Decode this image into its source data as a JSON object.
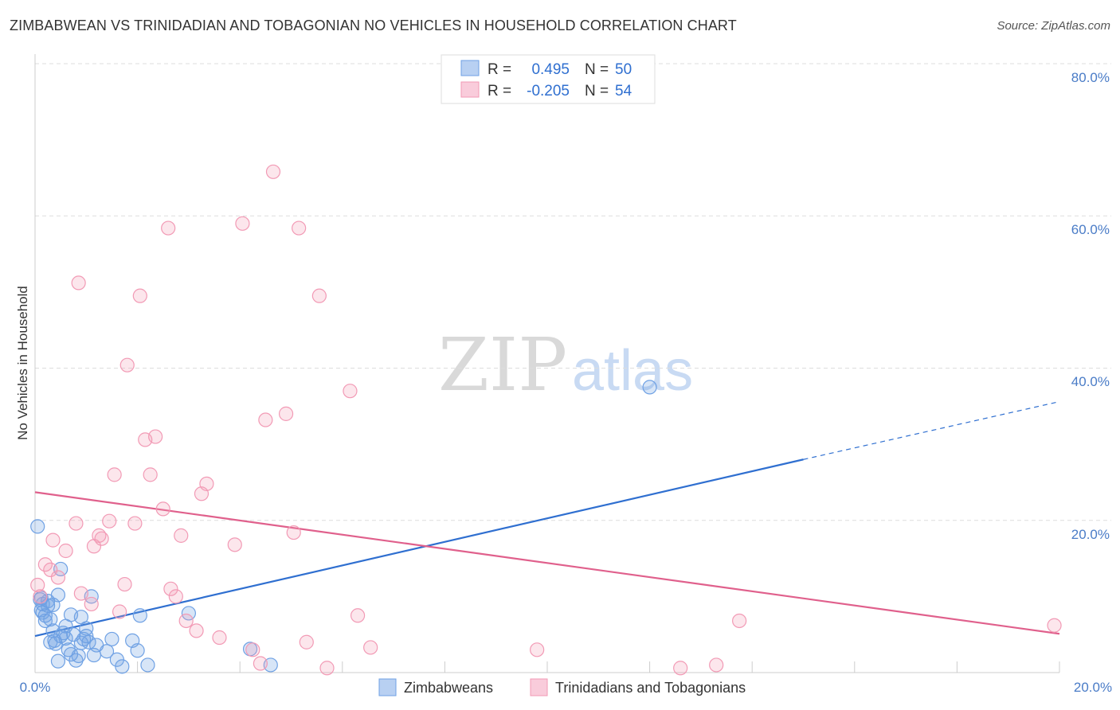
{
  "title": "ZIMBABWEAN VS TRINIDADIAN AND TOBAGONIAN NO VEHICLES IN HOUSEHOLD CORRELATION CHART",
  "source": "Source: ZipAtlas.com",
  "watermark": {
    "zip": "ZIP",
    "atlas": "atlas"
  },
  "colors": {
    "blue": "#6fa1e4",
    "blue_line": "#2f6fd0",
    "pink": "#f29ab5",
    "pink_line": "#e0608c",
    "grid": "#dddddd",
    "axis_text": "#4a7cc7"
  },
  "legend": {
    "rows": [
      {
        "r_label": "R =",
        "r_value": "0.495",
        "n_label": "N =",
        "n_value": "50"
      },
      {
        "r_label": "R =",
        "r_value": "-0.205",
        "n_label": "N =",
        "n_value": "54"
      }
    ]
  },
  "bottom_legend": [
    "Zimbabweans",
    "Trinidadians and Tobagonians"
  ],
  "chart_data": {
    "type": "scatter",
    "title": "ZIMBABWEAN VS TRINIDADIAN AND TOBAGONIAN NO VEHICLES IN HOUSEHOLD CORRELATION CHART",
    "xlabel": "",
    "ylabel": "No Vehicles in Household",
    "xlim": [
      0,
      20
    ],
    "ylim": [
      0,
      80
    ],
    "x_ticks": [
      "0.0%",
      "20.0%"
    ],
    "y_ticks": [
      "20.0%",
      "40.0%",
      "60.0%",
      "80.0%"
    ],
    "y_tick_values": [
      20,
      40,
      60,
      80
    ],
    "grid": true,
    "legend_position": "top-center",
    "series": [
      {
        "name": "Zimbabweans",
        "color": "#6fa1e4",
        "points": [
          [
            0.05,
            19.2
          ],
          [
            0.1,
            9.6
          ],
          [
            0.12,
            8.2
          ],
          [
            0.15,
            9.0
          ],
          [
            0.2,
            7.5
          ],
          [
            0.25,
            8.8
          ],
          [
            0.3,
            7.0
          ],
          [
            0.35,
            5.5
          ],
          [
            0.38,
            4.2
          ],
          [
            0.4,
            3.8
          ],
          [
            0.45,
            10.2
          ],
          [
            0.5,
            4.8
          ],
          [
            0.5,
            13.6
          ],
          [
            0.55,
            5.2
          ],
          [
            0.6,
            6.1
          ],
          [
            0.65,
            3.0
          ],
          [
            0.7,
            2.4
          ],
          [
            0.7,
            7.6
          ],
          [
            0.75,
            5.0
          ],
          [
            0.8,
            1.6
          ],
          [
            0.85,
            2.2
          ],
          [
            0.9,
            3.9
          ],
          [
            0.95,
            4.4
          ],
          [
            1.0,
            5.8
          ],
          [
            1.05,
            4.0
          ],
          [
            1.1,
            10.0
          ],
          [
            1.15,
            2.3
          ],
          [
            1.2,
            3.6
          ],
          [
            1.4,
            2.8
          ],
          [
            1.5,
            4.4
          ],
          [
            1.6,
            1.7
          ],
          [
            1.7,
            0.8
          ],
          [
            1.9,
            4.2
          ],
          [
            2.0,
            2.9
          ],
          [
            2.05,
            7.5
          ],
          [
            2.2,
            1.0
          ],
          [
            3.0,
            7.8
          ],
          [
            4.2,
            3.1
          ],
          [
            4.6,
            1.0
          ],
          [
            0.15,
            7.9
          ],
          [
            0.25,
            9.4
          ],
          [
            0.6,
            4.5
          ],
          [
            0.3,
            4.0
          ],
          [
            0.2,
            6.8
          ],
          [
            0.9,
            7.3
          ],
          [
            12.0,
            37.5
          ],
          [
            0.35,
            8.9
          ],
          [
            0.12,
            9.8
          ],
          [
            1.0,
            4.8
          ],
          [
            0.45,
            1.5
          ]
        ]
      },
      {
        "name": "Trinidadians and Tobagonians",
        "color": "#f29ab5",
        "points": [
          [
            0.05,
            11.5
          ],
          [
            0.1,
            10.0
          ],
          [
            0.2,
            14.2
          ],
          [
            0.3,
            13.5
          ],
          [
            0.35,
            17.4
          ],
          [
            0.45,
            12.5
          ],
          [
            0.6,
            16.0
          ],
          [
            0.8,
            19.6
          ],
          [
            0.85,
            51.2
          ],
          [
            0.9,
            10.4
          ],
          [
            1.1,
            9.0
          ],
          [
            1.15,
            16.6
          ],
          [
            1.25,
            18.0
          ],
          [
            1.3,
            17.6
          ],
          [
            1.45,
            19.9
          ],
          [
            1.55,
            26.0
          ],
          [
            1.65,
            8.0
          ],
          [
            1.75,
            11.6
          ],
          [
            1.8,
            40.4
          ],
          [
            1.95,
            19.6
          ],
          [
            2.05,
            49.5
          ],
          [
            2.15,
            30.6
          ],
          [
            2.25,
            26.0
          ],
          [
            2.35,
            31.0
          ],
          [
            2.5,
            21.5
          ],
          [
            2.6,
            58.4
          ],
          [
            2.65,
            11.0
          ],
          [
            2.75,
            10.0
          ],
          [
            2.85,
            18.0
          ],
          [
            2.95,
            6.8
          ],
          [
            3.15,
            5.5
          ],
          [
            3.25,
            23.5
          ],
          [
            3.35,
            24.8
          ],
          [
            3.6,
            4.6
          ],
          [
            3.9,
            16.8
          ],
          [
            4.05,
            59.0
          ],
          [
            4.25,
            3.0
          ],
          [
            4.4,
            1.2
          ],
          [
            4.5,
            33.2
          ],
          [
            4.65,
            65.8
          ],
          [
            4.9,
            34.0
          ],
          [
            5.05,
            18.4
          ],
          [
            5.15,
            58.4
          ],
          [
            5.3,
            4.0
          ],
          [
            5.55,
            49.5
          ],
          [
            5.7,
            0.6
          ],
          [
            6.15,
            37.0
          ],
          [
            6.3,
            7.5
          ],
          [
            6.55,
            3.3
          ],
          [
            9.8,
            3.0
          ],
          [
            12.6,
            0.6
          ],
          [
            13.3,
            1.0
          ],
          [
            13.75,
            6.8
          ],
          [
            19.9,
            6.2
          ]
        ]
      }
    ],
    "trend_lines": [
      {
        "series": "Zimbabweans",
        "x": [
          0,
          15
        ],
        "y": [
          4.8,
          28.0
        ],
        "dashed_extension_to_x": 20,
        "dashed_end_y": 35.6
      },
      {
        "series": "Trinidadians and Tobagonians",
        "x": [
          0,
          20
        ],
        "y": [
          23.7,
          5.1
        ]
      }
    ]
  }
}
